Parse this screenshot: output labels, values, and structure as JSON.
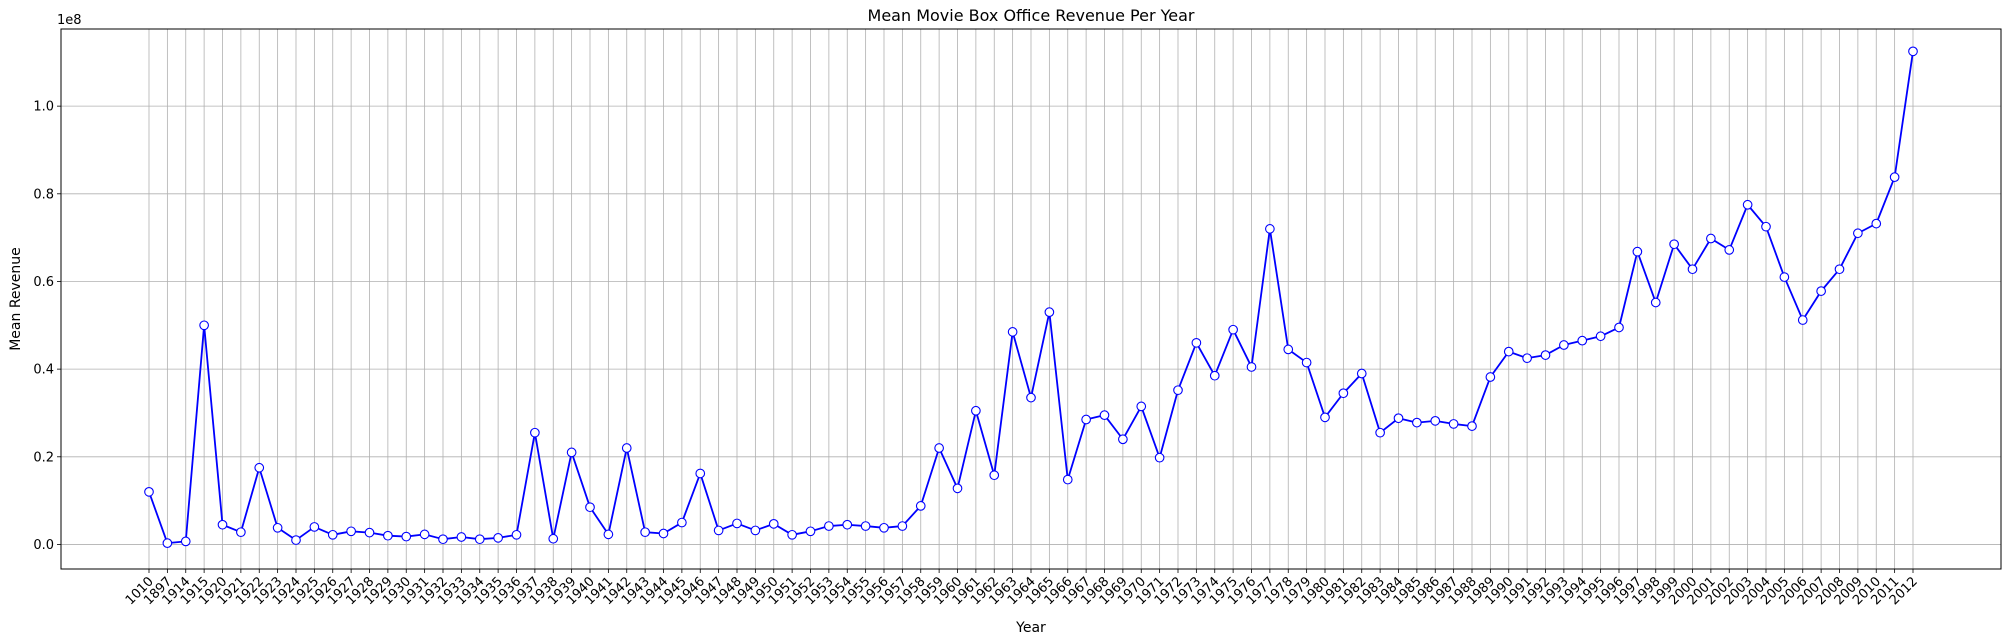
{
  "chart_data": {
    "type": "line",
    "title": "Mean Movie Box Office Revenue Per Year",
    "xlabel": "Year",
    "ylabel": "Mean Revenue",
    "y_offset_label": "1e8",
    "y_ticks": [
      "0.0",
      "0.2",
      "0.4",
      "0.6",
      "0.8",
      "1.0"
    ],
    "y_tick_values": [
      0,
      0.2,
      0.4,
      0.6,
      0.8,
      1.0
    ],
    "ylim": [
      -0.056,
      1.176
    ],
    "grid": true,
    "line_color": "#0000ff",
    "marker_fill": "#ffffff",
    "categories": [
      "1010",
      "1897",
      "1914",
      "1915",
      "1920",
      "1921",
      "1922",
      "1923",
      "1924",
      "1925",
      "1926",
      "1927",
      "1928",
      "1929",
      "1930",
      "1931",
      "1932",
      "1933",
      "1934",
      "1935",
      "1936",
      "1937",
      "1938",
      "1939",
      "1940",
      "1941",
      "1942",
      "1943",
      "1944",
      "1945",
      "1946",
      "1947",
      "1948",
      "1949",
      "1950",
      "1951",
      "1952",
      "1953",
      "1954",
      "1955",
      "1956",
      "1957",
      "1958",
      "1959",
      "1960",
      "1961",
      "1962",
      "1963",
      "1964",
      "1965",
      "1966",
      "1967",
      "1968",
      "1969",
      "1970",
      "1971",
      "1972",
      "1973",
      "1974",
      "1975",
      "1976",
      "1977",
      "1978",
      "1979",
      "1980",
      "1981",
      "1982",
      "1983",
      "1984",
      "1985",
      "1986",
      "1987",
      "1988",
      "1989",
      "1990",
      "1991",
      "1992",
      "1993",
      "1994",
      "1995",
      "1996",
      "1997",
      "1998",
      "1999",
      "2000",
      "2001",
      "2002",
      "2003",
      "2004",
      "2005",
      "2006",
      "2007",
      "2008",
      "2009",
      "2010",
      "2011",
      "2012"
    ],
    "values": [
      0.12,
      0.003,
      0.007,
      0.5,
      0.045,
      0.028,
      0.175,
      0.038,
      0.01,
      0.04,
      0.022,
      0.03,
      0.027,
      0.02,
      0.018,
      0.023,
      0.012,
      0.017,
      0.012,
      0.015,
      0.022,
      0.255,
      0.013,
      0.21,
      0.085,
      0.023,
      0.22,
      0.028,
      0.025,
      0.05,
      0.162,
      0.032,
      0.048,
      0.032,
      0.047,
      0.022,
      0.03,
      0.042,
      0.045,
      0.042,
      0.038,
      0.042,
      0.088,
      0.22,
      0.128,
      0.305,
      0.158,
      0.485,
      0.335,
      0.53,
      0.148,
      0.285,
      0.295,
      0.24,
      0.315,
      0.198,
      0.352,
      0.46,
      0.385,
      0.49,
      0.405,
      0.72,
      0.445,
      0.415,
      0.29,
      0.345,
      0.39,
      0.255,
      0.288,
      0.278,
      0.282,
      0.275,
      0.27,
      0.382,
      0.44,
      0.425,
      0.432,
      0.455,
      0.465,
      0.475,
      0.495,
      0.668,
      0.552,
      0.685,
      0.628,
      0.698,
      0.672,
      0.775,
      0.725,
      0.61,
      0.512,
      0.578,
      0.628,
      0.71,
      0.732,
      0.838,
      1.125
    ]
  }
}
